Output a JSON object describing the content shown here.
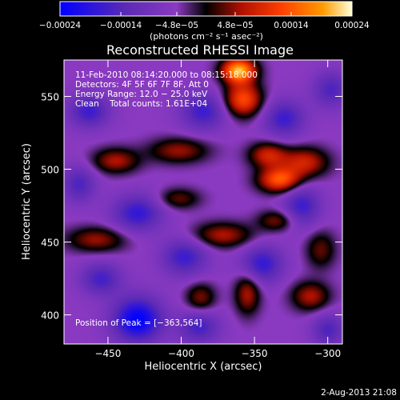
{
  "chart_data": {
    "type": "heatmap",
    "title": "Reconstructed RHESSI Image",
    "xlabel": "Heliocentric X (arcsec)",
    "ylabel": "Heliocentric Y (arcsec)",
    "xlim": [
      -480,
      -290
    ],
    "ylim": [
      380,
      575
    ],
    "xticks": [
      -450,
      -400,
      -350,
      -300
    ],
    "xtick_labels": [
      "−450",
      "−400",
      "−350",
      "−300"
    ],
    "yticks": [
      400,
      450,
      500,
      550
    ],
    "ytick_labels": [
      "400",
      "450",
      "500",
      "550"
    ],
    "colorbar": {
      "range": [
        -0.00024,
        0.00024
      ],
      "ticks": [
        -0.00024,
        -0.00014,
        -4.8e-05,
        4.8e-05,
        0.00014,
        0.00024
      ],
      "tick_labels": [
        "−0.00024",
        "−0.00014",
        "−4.8e−05",
        "4.8e−05",
        "0.00014",
        "0.00024"
      ],
      "unit_label": "(photons cm⁻² s⁻¹ asec⁻²)",
      "colors": [
        "#0000ff",
        "#5a2ab6",
        "#8a3ac0",
        "#000000",
        "#b01000",
        "#ff4000",
        "#ff9a00",
        "#ffffd8"
      ]
    },
    "annotations": [
      "11-Feb-2010 08:14:20.000 to 08:15:18.000",
      "Detectors: 4F 5F 6F 7F 8F, Att 0",
      "Energy Range: 12.0 − 25.0 keV",
      "Clean    Total counts: 1.61E+04"
    ],
    "peak_label": "Position of Peak = [−363,564]",
    "peak": [
      -363,
      564
    ],
    "sources": [
      {
        "x": -361,
        "y": 568,
        "sx": 8,
        "sy": 6,
        "v": 0.00026
      },
      {
        "x": -358,
        "y": 548,
        "sx": 9,
        "sy": 8,
        "v": 0.00018
      },
      {
        "x": -333,
        "y": 493,
        "sx": 10,
        "sy": 6,
        "v": 0.00019
      },
      {
        "x": -316,
        "y": 505,
        "sx": 11,
        "sy": 7,
        "v": 0.00013
      },
      {
        "x": -341,
        "y": 510,
        "sx": 9,
        "sy": 6,
        "v": 0.00013
      },
      {
        "x": -445,
        "y": 506,
        "sx": 11,
        "sy": 6,
        "v": 0.00011
      },
      {
        "x": -402,
        "y": 513,
        "sx": 14,
        "sy": 6,
        "v": 0.0001
      },
      {
        "x": -458,
        "y": 452,
        "sx": 14,
        "sy": 6,
        "v": 0.0001
      },
      {
        "x": -372,
        "y": 455,
        "sx": 14,
        "sy": 6,
        "v": 0.00011
      },
      {
        "x": -335,
        "y": 465,
        "sx": 9,
        "sy": 5,
        "v": 9e-05
      },
      {
        "x": -402,
        "y": 480,
        "sx": 10,
        "sy": 5,
        "v": 8e-05
      },
      {
        "x": -355,
        "y": 415,
        "sx": 6,
        "sy": 10,
        "v": 0.00011
      },
      {
        "x": -312,
        "y": 413,
        "sx": 9,
        "sy": 7,
        "v": 0.00011
      },
      {
        "x": -387,
        "y": 412,
        "sx": 7,
        "sy": 7,
        "v": 9e-05
      },
      {
        "x": -305,
        "y": 445,
        "sx": 7,
        "sy": 9,
        "v": 8e-05
      },
      {
        "x": -463,
        "y": 540,
        "sx": 10,
        "sy": 8,
        "v": -0.00012
      },
      {
        "x": -430,
        "y": 470,
        "sx": 12,
        "sy": 9,
        "v": -0.00013
      },
      {
        "x": -430,
        "y": 397,
        "sx": 12,
        "sy": 11,
        "v": -0.00019
      },
      {
        "x": -385,
        "y": 540,
        "sx": 11,
        "sy": 9,
        "v": -0.00012
      },
      {
        "x": -330,
        "y": 535,
        "sx": 10,
        "sy": 9,
        "v": -0.00012
      },
      {
        "x": -318,
        "y": 475,
        "sx": 9,
        "sy": 10,
        "v": -0.00012
      },
      {
        "x": -398,
        "y": 440,
        "sx": 11,
        "sy": 9,
        "v": -0.00012
      },
      {
        "x": -345,
        "y": 435,
        "sx": 10,
        "sy": 9,
        "v": -0.00013
      },
      {
        "x": -455,
        "y": 425,
        "sx": 10,
        "sy": 8,
        "v": -0.00011
      },
      {
        "x": -388,
        "y": 392,
        "sx": 10,
        "sy": 8,
        "v": -0.00011
      },
      {
        "x": -298,
        "y": 555,
        "sx": 9,
        "sy": 9,
        "v": -0.0001
      },
      {
        "x": -470,
        "y": 490,
        "sx": 8,
        "sy": 9,
        "v": -0.0001
      },
      {
        "x": -300,
        "y": 390,
        "sx": 8,
        "sy": 8,
        "v": -0.0001
      }
    ]
  },
  "footer_date": "2-Aug-2013 21:08"
}
